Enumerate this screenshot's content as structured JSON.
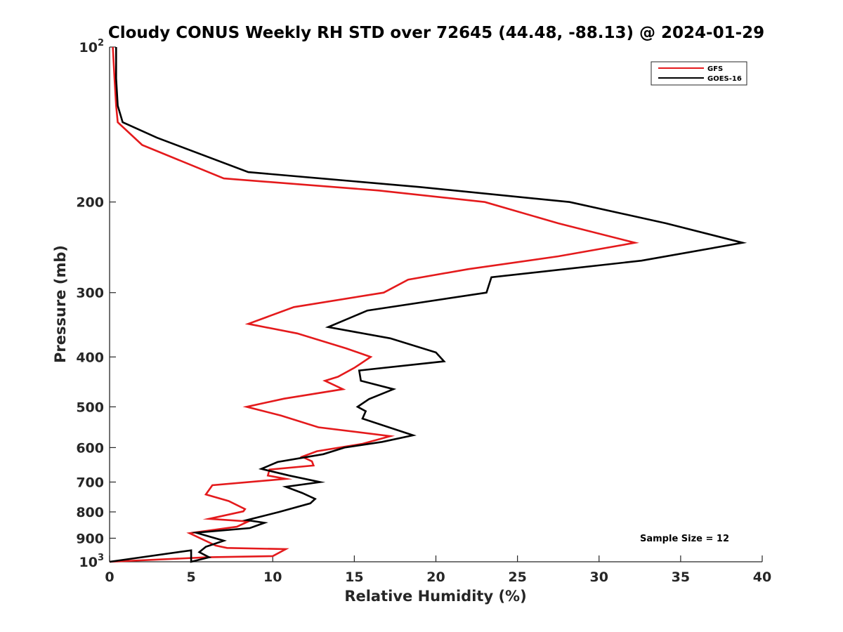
{
  "chart_data": {
    "type": "line",
    "title": "Cloudy CONUS Weekly RH STD over 72645 (44.48, -88.13) @ 2024-01-29",
    "xlabel": "Relative Humidity (%)",
    "ylabel": "Pressure (mb)",
    "xlim": [
      0,
      40
    ],
    "ylim": [
      100,
      1000
    ],
    "y_scale": "log",
    "y_reversed": true,
    "grid": false,
    "legend_position": "top-right",
    "x_ticks": [
      0,
      5,
      10,
      15,
      20,
      25,
      30,
      35,
      40
    ],
    "x_tick_labels": [
      "0",
      "5",
      "10",
      "15",
      "20",
      "25",
      "30",
      "35",
      "40"
    ],
    "y_ticks": [
      100,
      200,
      300,
      400,
      500,
      600,
      700,
      800,
      900,
      1000
    ],
    "y_tick_labels": [
      {
        "base": "10",
        "exp": "2"
      },
      {
        "base": "200",
        "exp": ""
      },
      {
        "base": "300",
        "exp": ""
      },
      {
        "base": "400",
        "exp": ""
      },
      {
        "base": "500",
        "exp": ""
      },
      {
        "base": "600",
        "exp": ""
      },
      {
        "base": "700",
        "exp": ""
      },
      {
        "base": "800",
        "exp": ""
      },
      {
        "base": "900",
        "exp": ""
      },
      {
        "base": "10",
        "exp": "3"
      }
    ],
    "annotation": "Sample Size = 12",
    "series": [
      {
        "name": "GFS",
        "color": "#e41a1c",
        "points": [
          [
            0.2,
            100
          ],
          [
            0.3,
            115
          ],
          [
            0.4,
            130
          ],
          [
            0.5,
            140
          ],
          [
            2.0,
            155
          ],
          [
            7.0,
            180
          ],
          [
            16.5,
            190
          ],
          [
            23.0,
            200
          ],
          [
            27.5,
            220
          ],
          [
            32.2,
            240
          ],
          [
            27.5,
            255
          ],
          [
            22.0,
            270
          ],
          [
            18.3,
            283
          ],
          [
            16.8,
            300
          ],
          [
            11.3,
            320
          ],
          [
            8.5,
            345
          ],
          [
            11.5,
            360
          ],
          [
            14.5,
            385
          ],
          [
            16.0,
            400
          ],
          [
            15.0,
            420
          ],
          [
            14.0,
            437
          ],
          [
            13.2,
            445
          ],
          [
            14.3,
            462
          ],
          [
            10.7,
            482
          ],
          [
            8.4,
            500
          ],
          [
            10.5,
            520
          ],
          [
            12.8,
            548
          ],
          [
            17.2,
            570
          ],
          [
            15.5,
            590
          ],
          [
            12.7,
            610
          ],
          [
            11.8,
            625
          ],
          [
            12.4,
            638
          ],
          [
            12.5,
            650
          ],
          [
            9.8,
            662
          ],
          [
            9.7,
            680
          ],
          [
            10.8,
            690
          ],
          [
            6.3,
            710
          ],
          [
            5.9,
            740
          ],
          [
            7.3,
            762
          ],
          [
            8.3,
            790
          ],
          [
            8.2,
            798
          ],
          [
            6.1,
            825
          ],
          [
            8.5,
            835
          ],
          [
            7.8,
            855
          ],
          [
            4.9,
            880
          ],
          [
            6.5,
            930
          ],
          [
            7.2,
            940
          ],
          [
            10.8,
            945
          ],
          [
            10.0,
            975
          ],
          [
            6.0,
            980
          ],
          [
            0.0,
            1000
          ]
        ]
      },
      {
        "name": "GOES-16",
        "color": "#000000",
        "points": [
          [
            0.4,
            100
          ],
          [
            0.4,
            115
          ],
          [
            0.5,
            130
          ],
          [
            0.8,
            140
          ],
          [
            2.9,
            150
          ],
          [
            8.5,
            175
          ],
          [
            19.0,
            187
          ],
          [
            28.2,
            200
          ],
          [
            34.1,
            220
          ],
          [
            38.8,
            240
          ],
          [
            32.6,
            260
          ],
          [
            23.4,
            280
          ],
          [
            23.1,
            300
          ],
          [
            15.8,
            325
          ],
          [
            13.4,
            350
          ],
          [
            17.2,
            368
          ],
          [
            20.0,
            392
          ],
          [
            20.5,
            408
          ],
          [
            15.3,
            425
          ],
          [
            15.4,
            445
          ],
          [
            17.4,
            462
          ],
          [
            15.9,
            483
          ],
          [
            15.2,
            500
          ],
          [
            15.7,
            510
          ],
          [
            15.5,
            527
          ],
          [
            18.6,
            568
          ],
          [
            16.7,
            585
          ],
          [
            14.4,
            600
          ],
          [
            13.1,
            618
          ],
          [
            10.3,
            640
          ],
          [
            9.3,
            660
          ],
          [
            11.0,
            680
          ],
          [
            12.9,
            700
          ],
          [
            10.8,
            715
          ],
          [
            11.8,
            735
          ],
          [
            12.6,
            755
          ],
          [
            12.3,
            770
          ],
          [
            10.4,
            800
          ],
          [
            8.4,
            830
          ],
          [
            9.5,
            840
          ],
          [
            8.6,
            860
          ],
          [
            5.3,
            878
          ],
          [
            7.0,
            910
          ],
          [
            5.9,
            935
          ],
          [
            5.5,
            958
          ],
          [
            6.1,
            980
          ],
          [
            5.0,
            1000
          ],
          [
            5.0,
            950
          ],
          [
            0.0,
            1000
          ]
        ]
      }
    ]
  }
}
